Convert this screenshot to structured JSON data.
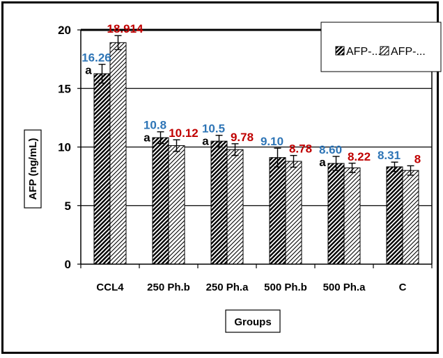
{
  "chart_data": {
    "type": "bar",
    "title": "",
    "xlabel": "Groups",
    "ylabel": "AFP (ng/mL)",
    "ylim": [
      0,
      20
    ],
    "yticks": [
      "0",
      "5",
      "10",
      "15",
      "20"
    ],
    "grid": true,
    "legend_position": "top-right",
    "categories": [
      "CCL4",
      "250 Ph.b",
      "250 Ph.a",
      "500 Ph.b",
      "500 Ph.a",
      "C"
    ],
    "series": [
      {
        "name": "AFP-...",
        "values": [
          16.26,
          10.8,
          10.5,
          9.1,
          8.6,
          8.31
        ],
        "data_labels": [
          "16.26",
          "10.8",
          "10.5",
          "9.10",
          "8.60",
          "8.31"
        ],
        "error": [
          0.8,
          0.5,
          0.5,
          0.8,
          0.6,
          0.4
        ],
        "label_color": "#2e75b6",
        "pattern": "dense-diagonal"
      },
      {
        "name": "AFP-...",
        "values": [
          18.914,
          10.12,
          9.78,
          8.78,
          8.22,
          8
        ],
        "data_labels": [
          "18.914",
          "10.12",
          "9.78",
          "8.78",
          "8.22",
          "8"
        ],
        "error": [
          0.6,
          0.5,
          0.5,
          0.5,
          0.4,
          0.4
        ],
        "label_color": "#c00000",
        "pattern": "light-diagonal"
      }
    ],
    "letter_annotations": [
      {
        "category": "CCL4",
        "text": "a"
      },
      {
        "category": "250 Ph.b",
        "text": "a"
      },
      {
        "category": "250 Ph.a",
        "text": "a"
      },
      {
        "category": "500 Ph.a",
        "text": "a"
      }
    ]
  }
}
